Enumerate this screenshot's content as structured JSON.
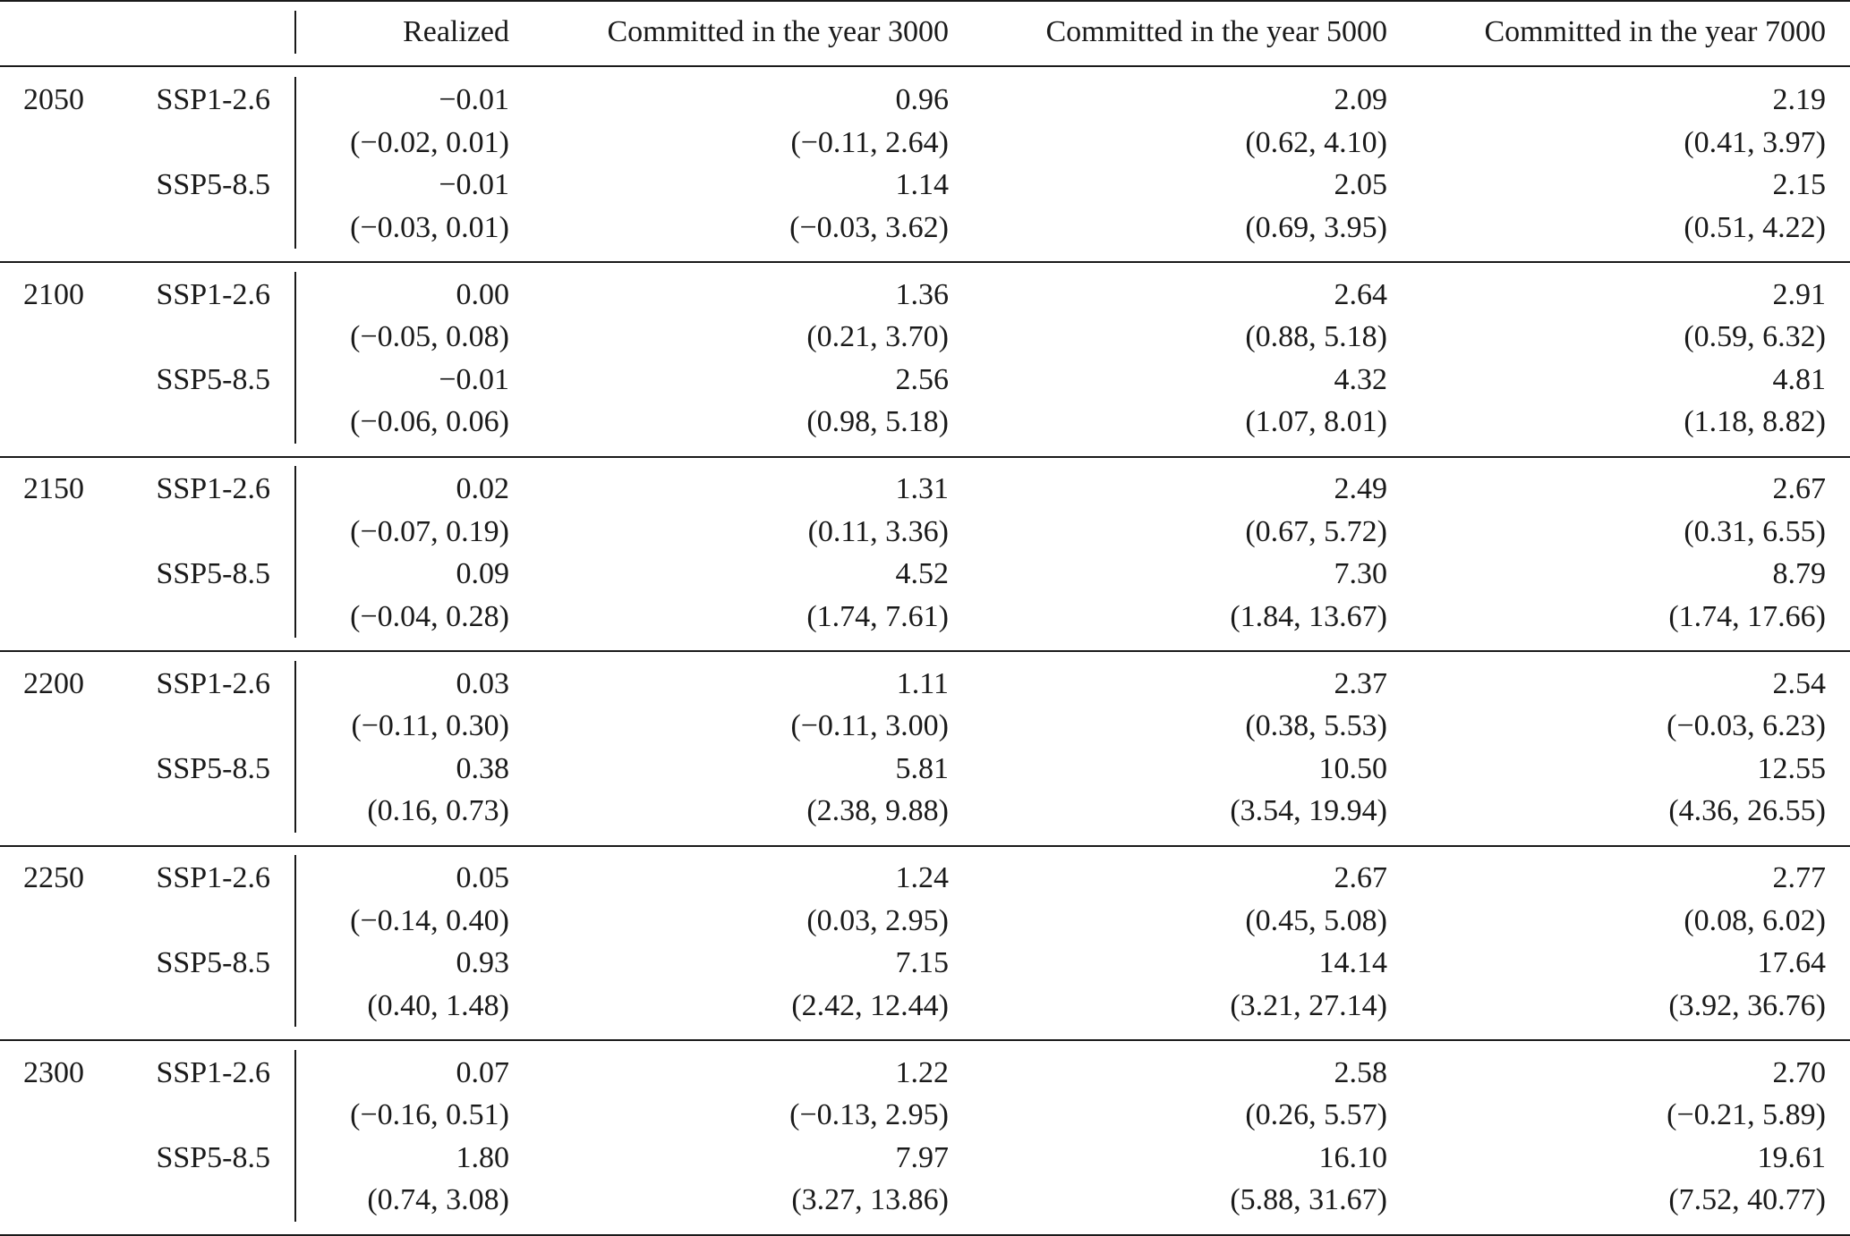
{
  "header": {
    "col_realized": "Realized",
    "col_3000": "Committed in the year 3000",
    "col_5000": "Committed in the year 5000",
    "col_7000": "Committed in the year 7000"
  },
  "groups": [
    {
      "year": "2050",
      "scenarios": [
        {
          "name": "SSP1-2.6",
          "realized": "−0.01",
          "realized_ci": "(−0.02, 0.01)",
          "c3000": "0.96",
          "c3000_ci": "(−0.11, 2.64)",
          "c5000": "2.09",
          "c5000_ci": "(0.62, 4.10)",
          "c7000": "2.19",
          "c7000_ci": "(0.41, 3.97)"
        },
        {
          "name": "SSP5-8.5",
          "realized": "−0.01",
          "realized_ci": "(−0.03, 0.01)",
          "c3000": "1.14",
          "c3000_ci": "(−0.03, 3.62)",
          "c5000": "2.05",
          "c5000_ci": "(0.69, 3.95)",
          "c7000": "2.15",
          "c7000_ci": "(0.51, 4.22)"
        }
      ]
    },
    {
      "year": "2100",
      "scenarios": [
        {
          "name": "SSP1-2.6",
          "realized": "0.00",
          "realized_ci": "(−0.05, 0.08)",
          "c3000": "1.36",
          "c3000_ci": "(0.21, 3.70)",
          "c5000": "2.64",
          "c5000_ci": "(0.88, 5.18)",
          "c7000": "2.91",
          "c7000_ci": "(0.59, 6.32)"
        },
        {
          "name": "SSP5-8.5",
          "realized": "−0.01",
          "realized_ci": "(−0.06, 0.06)",
          "c3000": "2.56",
          "c3000_ci": "(0.98, 5.18)",
          "c5000": "4.32",
          "c5000_ci": "(1.07, 8.01)",
          "c7000": "4.81",
          "c7000_ci": "(1.18, 8.82)"
        }
      ]
    },
    {
      "year": "2150",
      "scenarios": [
        {
          "name": "SSP1-2.6",
          "realized": "0.02",
          "realized_ci": "(−0.07, 0.19)",
          "c3000": "1.31",
          "c3000_ci": "(0.11, 3.36)",
          "c5000": "2.49",
          "c5000_ci": "(0.67, 5.72)",
          "c7000": "2.67",
          "c7000_ci": "(0.31, 6.55)"
        },
        {
          "name": "SSP5-8.5",
          "realized": "0.09",
          "realized_ci": "(−0.04, 0.28)",
          "c3000": "4.52",
          "c3000_ci": "(1.74, 7.61)",
          "c5000": "7.30",
          "c5000_ci": "(1.84, 13.67)",
          "c7000": "8.79",
          "c7000_ci": "(1.74, 17.66)"
        }
      ]
    },
    {
      "year": "2200",
      "scenarios": [
        {
          "name": "SSP1-2.6",
          "realized": "0.03",
          "realized_ci": "(−0.11, 0.30)",
          "c3000": "1.11",
          "c3000_ci": "(−0.11, 3.00)",
          "c5000": "2.37",
          "c5000_ci": "(0.38, 5.53)",
          "c7000": "2.54",
          "c7000_ci": "(−0.03, 6.23)"
        },
        {
          "name": "SSP5-8.5",
          "realized": "0.38",
          "realized_ci": "(0.16, 0.73)",
          "c3000": "5.81",
          "c3000_ci": "(2.38, 9.88)",
          "c5000": "10.50",
          "c5000_ci": "(3.54, 19.94)",
          "c7000": "12.55",
          "c7000_ci": "(4.36, 26.55)"
        }
      ]
    },
    {
      "year": "2250",
      "scenarios": [
        {
          "name": "SSP1-2.6",
          "realized": "0.05",
          "realized_ci": "(−0.14, 0.40)",
          "c3000": "1.24",
          "c3000_ci": "(0.03, 2.95)",
          "c5000": "2.67",
          "c5000_ci": "(0.45, 5.08)",
          "c7000": "2.77",
          "c7000_ci": "(0.08, 6.02)"
        },
        {
          "name": "SSP5-8.5",
          "realized": "0.93",
          "realized_ci": "(0.40, 1.48)",
          "c3000": "7.15",
          "c3000_ci": "(2.42, 12.44)",
          "c5000": "14.14",
          "c5000_ci": "(3.21, 27.14)",
          "c7000": "17.64",
          "c7000_ci": "(3.92, 36.76)"
        }
      ]
    },
    {
      "year": "2300",
      "scenarios": [
        {
          "name": "SSP1-2.6",
          "realized": "0.07",
          "realized_ci": "(−0.16, 0.51)",
          "c3000": "1.22",
          "c3000_ci": "(−0.13, 2.95)",
          "c5000": "2.58",
          "c5000_ci": "(0.26, 5.57)",
          "c7000": "2.70",
          "c7000_ci": "(−0.21, 5.89)"
        },
        {
          "name": "SSP5-8.5",
          "realized": "1.80",
          "realized_ci": "(0.74, 3.08)",
          "c3000": "7.97",
          "c3000_ci": "(3.27, 13.86)",
          "c5000": "16.10",
          "c5000_ci": "(5.88, 31.67)",
          "c7000": "19.61",
          "c7000_ci": "(7.52, 40.77)"
        }
      ]
    }
  ]
}
